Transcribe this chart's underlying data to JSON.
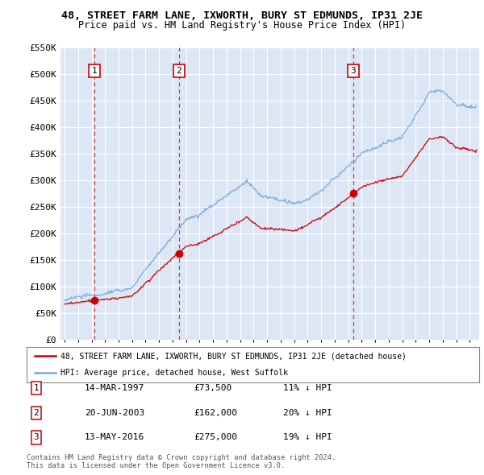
{
  "title": "48, STREET FARM LANE, IXWORTH, BURY ST EDMUNDS, IP31 2JE",
  "subtitle": "Price paid vs. HM Land Registry's House Price Index (HPI)",
  "ylim": [
    0,
    550000
  ],
  "yticks": [
    0,
    50000,
    100000,
    150000,
    200000,
    250000,
    300000,
    350000,
    400000,
    450000,
    500000,
    550000
  ],
  "ytick_labels": [
    "£0",
    "£50K",
    "£100K",
    "£150K",
    "£200K",
    "£250K",
    "£300K",
    "£350K",
    "£400K",
    "£450K",
    "£500K",
    "£550K"
  ],
  "background_color": "#ffffff",
  "plot_bg_color": "#dce6f5",
  "grid_color": "#ffffff",
  "transactions": [
    {
      "date_num": 1997.21,
      "price": 73500,
      "label": "1"
    },
    {
      "date_num": 2003.47,
      "price": 162000,
      "label": "2"
    },
    {
      "date_num": 2016.37,
      "price": 275000,
      "label": "3"
    }
  ],
  "transaction_dates": [
    "14-MAR-1997",
    "20-JUN-2003",
    "13-MAY-2016"
  ],
  "transaction_prices": [
    "£73,500",
    "£162,000",
    "£275,000"
  ],
  "transaction_hpi": [
    "11% ↓ HPI",
    "20% ↓ HPI",
    "19% ↓ HPI"
  ],
  "legend_line1": "48, STREET FARM LANE, IXWORTH, BURY ST EDMUNDS, IP31 2JE (detached house)",
  "legend_line2": "HPI: Average price, detached house, West Suffolk",
  "footer1": "Contains HM Land Registry data © Crown copyright and database right 2024.",
  "footer2": "This data is licensed under the Open Government Licence v3.0.",
  "red_color": "#cc0000",
  "blue_color": "#7aabdb",
  "marker_color": "#cc0000",
  "xlim_left": 1994.7,
  "xlim_right": 2025.7
}
